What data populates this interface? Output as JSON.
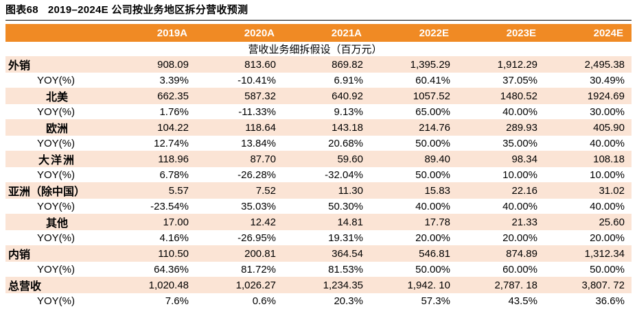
{
  "figure": {
    "number": "图表68",
    "title": "2019–2024E 公司按业务地区拆分营收预测"
  },
  "table": {
    "columns": [
      "2019A",
      "2020A",
      "2021A",
      "2022E",
      "2023E",
      "2024E"
    ],
    "subtitle": "营收业务细拆假设（百万元）",
    "rows": [
      {
        "kind": "cat",
        "label": "外销",
        "values": [
          "908.09",
          "813.60",
          "869.82",
          "1,395.29",
          "1,912.29",
          "2,495.38"
        ]
      },
      {
        "kind": "yoy",
        "label": "YOY(%)",
        "values": [
          "3.39%",
          "-10.41%",
          "6.91%",
          "60.41%",
          "37.05%",
          "30.49%"
        ]
      },
      {
        "kind": "cat",
        "label": "北美",
        "values": [
          "662.35",
          "587.32",
          "640.92",
          "1057.52",
          "1480.52",
          "1924.69"
        ]
      },
      {
        "kind": "yoy",
        "label": "YOY(%)",
        "values": [
          "1.76%",
          "-11.33%",
          "9.13%",
          "65.00%",
          "40.00%",
          "30.00%"
        ]
      },
      {
        "kind": "cat",
        "label": "欧洲",
        "values": [
          "104.22",
          "118.64",
          "143.18",
          "214.76",
          "289.93",
          "405.90"
        ]
      },
      {
        "kind": "yoy",
        "label": "YOY(%)",
        "values": [
          "12.74%",
          "13.84%",
          "20.68%",
          "50.00%",
          "35.00%",
          "40.00%"
        ]
      },
      {
        "kind": "cat",
        "label": "大洋洲",
        "values": [
          "118.96",
          "87.70",
          "59.60",
          "89.40",
          "98.34",
          "108.18"
        ]
      },
      {
        "kind": "yoy",
        "label": "YOY(%)",
        "values": [
          "6.78%",
          "-26.28%",
          "-32.04%",
          "50.00%",
          "10.00%",
          "10.00%"
        ]
      },
      {
        "kind": "cat",
        "label": "亚洲（除中国）",
        "values": [
          "5.57",
          "7.52",
          "11.30",
          "15.83",
          "22.16",
          "31.02"
        ]
      },
      {
        "kind": "yoy",
        "label": "YOY(%)",
        "values": [
          "-23.54%",
          "35.03%",
          "50.30%",
          "40.00%",
          "40.00%",
          "40.00%"
        ]
      },
      {
        "kind": "cat",
        "label": "其他",
        "values": [
          "17.00",
          "12.42",
          "14.81",
          "17.78",
          "21.33",
          "25.60"
        ]
      },
      {
        "kind": "yoy",
        "label": "YOY(%)",
        "values": [
          "4.16%",
          "-26.95%",
          "19.31%",
          "20.00%",
          "20.00%",
          "20.00%"
        ]
      },
      {
        "kind": "cat",
        "label": "内销",
        "values": [
          "110.50",
          "200.81",
          "364.54",
          "546.81",
          "874.89",
          "1,312.34"
        ]
      },
      {
        "kind": "yoy",
        "label": "YOY(%)",
        "values": [
          "64.36%",
          "81.72%",
          "81.53%",
          "50.00%",
          "60.00%",
          "50.00%"
        ]
      },
      {
        "kind": "cat",
        "label": "总营收",
        "values": [
          "1,020.48",
          "1,026.27",
          "1,234.35",
          "1,942. 10",
          "2,787. 18",
          "3,807. 72"
        ]
      },
      {
        "kind": "yoy",
        "label": "YOY(%)",
        "values": [
          "7.6%",
          "0.6%",
          "20.3%",
          "57.3%",
          "43.5%",
          "36.6%"
        ]
      }
    ]
  },
  "colors": {
    "header_bg": "#F08A24",
    "category_bg": "#FBE4D5"
  }
}
